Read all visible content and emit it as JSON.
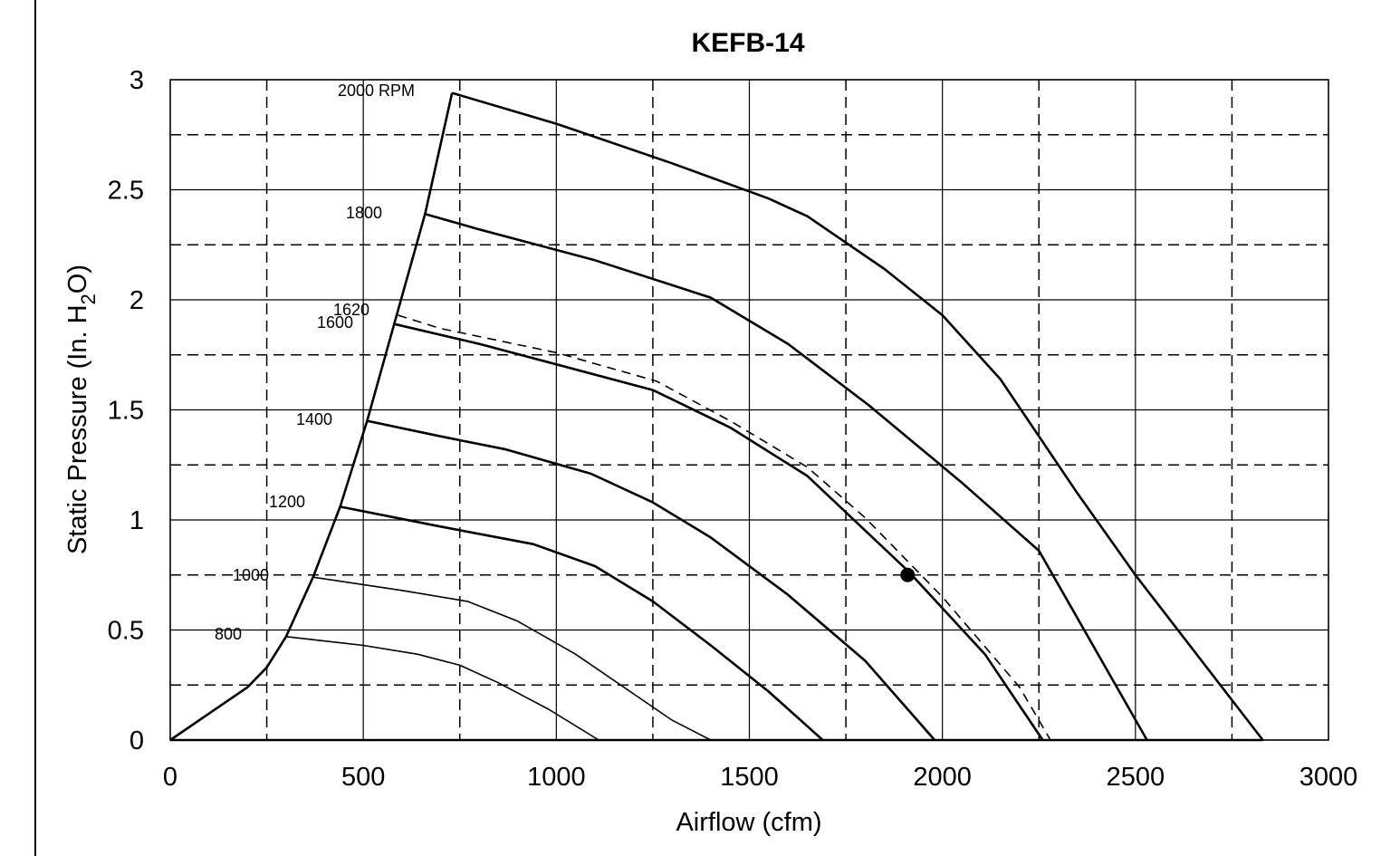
{
  "chart_data": {
    "type": "line",
    "title": "KEFB-14",
    "xlabel": "Airflow (cfm)",
    "ylabel_main": "Static Pressure (In. H",
    "ylabel_sub": "2",
    "ylabel_end": "O)",
    "xlim": [
      0,
      3000
    ],
    "ylim": [
      0,
      3
    ],
    "x_ticks": [
      0,
      500,
      1000,
      1500,
      2000,
      2500,
      3000
    ],
    "x_tick_labels": [
      "0",
      "500",
      "1000",
      "1500",
      "2000",
      "2500",
      "3000"
    ],
    "y_ticks": [
      0,
      0.5,
      1,
      1.5,
      2,
      2.5,
      3
    ],
    "y_tick_labels": [
      "0",
      "0.5",
      "1",
      "1.5",
      "2",
      "2.5",
      "3"
    ],
    "grid": {
      "major_solid": true,
      "dashed_x": [
        250,
        750,
        1250,
        1750,
        2250,
        2750
      ],
      "dashed_y": [
        0.25,
        0.75,
        1.25,
        1.75,
        2.25,
        2.75
      ]
    },
    "series": [
      {
        "name": "2000 RPM",
        "style": "solid",
        "weight": "bold",
        "x": [
          730,
          1000,
          1300,
          1550,
          1650,
          1850,
          2000,
          2150,
          2350,
          2500,
          2830
        ],
        "y": [
          2.94,
          2.8,
          2.62,
          2.46,
          2.38,
          2.14,
          1.93,
          1.64,
          1.12,
          0.75,
          0.0
        ]
      },
      {
        "name": "1800",
        "style": "solid",
        "weight": "bold",
        "x": [
          660,
          800,
          1100,
          1400,
          1600,
          1810,
          2050,
          2250,
          2530
        ],
        "y": [
          2.39,
          2.32,
          2.18,
          2.01,
          1.8,
          1.52,
          1.17,
          0.86,
          0.0
        ]
      },
      {
        "name": "1620",
        "style": "dashed",
        "weight": "normal",
        "x": [
          590,
          700,
          1000,
          1260,
          1450,
          1650,
          1800,
          2000,
          2200,
          2280
        ],
        "y": [
          1.93,
          1.87,
          1.76,
          1.63,
          1.45,
          1.24,
          1.01,
          0.65,
          0.24,
          0.0
        ]
      },
      {
        "name": "1600",
        "style": "solid",
        "weight": "bold",
        "x": [
          580,
          800,
          1250,
          1450,
          1650,
          1910,
          2110,
          2260
        ],
        "y": [
          1.89,
          1.8,
          1.59,
          1.42,
          1.2,
          0.77,
          0.39,
          0.0
        ]
      },
      {
        "name": "1400",
        "style": "solid",
        "weight": "bold",
        "x": [
          510,
          700,
          870,
          1090,
          1250,
          1400,
          1600,
          1800,
          1980
        ],
        "y": [
          1.45,
          1.38,
          1.32,
          1.21,
          1.08,
          0.92,
          0.66,
          0.36,
          0.0
        ]
      },
      {
        "name": "1200",
        "style": "solid",
        "weight": "bold",
        "x": [
          440,
          700,
          940,
          1100,
          1250,
          1400,
          1550,
          1690
        ],
        "y": [
          1.06,
          0.97,
          0.89,
          0.79,
          0.63,
          0.43,
          0.22,
          0.0
        ]
      },
      {
        "name": "1000",
        "style": "solid",
        "weight": "normal",
        "x": [
          370,
          600,
          770,
          900,
          1050,
          1200,
          1300,
          1400
        ],
        "y": [
          0.74,
          0.68,
          0.63,
          0.54,
          0.39,
          0.21,
          0.09,
          0.0
        ]
      },
      {
        "name": "800",
        "style": "solid",
        "weight": "normal",
        "x": [
          300,
          500,
          640,
          750,
          850,
          980,
          1110
        ],
        "y": [
          0.47,
          0.43,
          0.39,
          0.34,
          0.26,
          0.14,
          0.0
        ]
      },
      {
        "name": "system-left",
        "style": "solid",
        "weight": "bold",
        "x": [
          0,
          200,
          250,
          300,
          370,
          440,
          510,
          580,
          660,
          730
        ],
        "y": [
          0.0,
          0.24,
          0.33,
          0.47,
          0.74,
          1.06,
          1.45,
          1.89,
          2.39,
          2.94
        ]
      },
      {
        "name": "baseline",
        "style": "solid",
        "weight": "bold",
        "x": [
          0,
          2830
        ],
        "y": [
          0.0,
          0.0
        ]
      }
    ],
    "curve_labels": [
      "2000 RPM",
      "1800",
      "1620",
      "1600",
      "1400",
      "1200",
      "1000",
      "800"
    ],
    "operating_point": {
      "x": 1910,
      "y": 0.75
    }
  }
}
